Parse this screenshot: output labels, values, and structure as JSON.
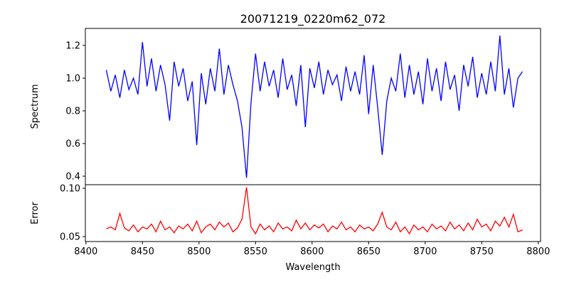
{
  "chart_data": [
    {
      "type": "line",
      "title": "20071219_0220m62_072",
      "xlabel": "",
      "ylabel": "Spectrum",
      "xlim": [
        8399.5,
        8802
      ],
      "ylim": [
        0.348,
        1.304
      ],
      "yticks": [
        0.4,
        0.6,
        0.8,
        1.0,
        1.2
      ],
      "ytick_labels": [
        "0.4",
        "0.6",
        "0.8",
        "1.0",
        "1.2"
      ],
      "color": "#0000ff",
      "series": [
        {
          "name": "Spectrum",
          "x": [
            8418,
            8422,
            8426,
            8430,
            8434,
            8438,
            8442,
            8446,
            8450,
            8454,
            8458,
            8462,
            8466,
            8470,
            8474,
            8478,
            8482,
            8486,
            8490,
            8494,
            8498,
            8502,
            8506,
            8510,
            8514,
            8518,
            8522,
            8526,
            8530,
            8534,
            8538,
            8542,
            8546,
            8550,
            8554,
            8558,
            8562,
            8566,
            8570,
            8574,
            8578,
            8582,
            8586,
            8590,
            8594,
            8598,
            8602,
            8606,
            8610,
            8614,
            8618,
            8622,
            8626,
            8630,
            8634,
            8638,
            8642,
            8646,
            8650,
            8654,
            8658,
            8662,
            8666,
            8670,
            8674,
            8678,
            8682,
            8686,
            8690,
            8694,
            8698,
            8702,
            8706,
            8710,
            8714,
            8718,
            8722,
            8726,
            8730,
            8734,
            8738,
            8742,
            8746,
            8750,
            8754,
            8758,
            8762,
            8766,
            8770,
            8774,
            8778,
            8782,
            8786
          ],
          "values": [
            1.05,
            0.92,
            1.02,
            0.88,
            1.05,
            0.93,
            1.0,
            0.9,
            1.22,
            0.95,
            1.12,
            0.92,
            1.08,
            0.96,
            0.74,
            1.1,
            0.95,
            1.06,
            0.86,
            0.98,
            0.59,
            1.03,
            0.84,
            1.06,
            0.92,
            1.18,
            0.9,
            1.08,
            0.96,
            0.86,
            0.7,
            0.39,
            0.85,
            1.15,
            0.92,
            1.1,
            0.95,
            1.05,
            0.88,
            1.12,
            0.93,
            1.02,
            0.83,
            1.08,
            0.7,
            1.06,
            0.94,
            1.1,
            0.9,
            1.05,
            0.96,
            1.02,
            0.86,
            1.07,
            0.92,
            1.04,
            0.9,
            1.14,
            0.78,
            1.08,
            0.82,
            0.53,
            0.86,
            1.0,
            0.92,
            1.15,
            0.88,
            1.08,
            0.9,
            1.04,
            0.84,
            1.12,
            0.92,
            1.06,
            0.86,
            1.1,
            0.93,
            1.02,
            0.8,
            1.08,
            0.95,
            1.13,
            0.88,
            1.03,
            0.9,
            1.1,
            0.92,
            1.26,
            0.9,
            1.06,
            0.82,
            1.0,
            1.04
          ]
        }
      ]
    },
    {
      "type": "line",
      "title": "",
      "xlabel": "Wavelength",
      "ylabel": "Error",
      "xlim": [
        8399.5,
        8802
      ],
      "ylim": [
        0.0449,
        0.1037
      ],
      "xticks": [
        8400,
        8450,
        8500,
        8550,
        8600,
        8650,
        8700,
        8750,
        8800
      ],
      "xtick_labels": [
        "8400",
        "8450",
        "8500",
        "8550",
        "8600",
        "8650",
        "8700",
        "8750",
        "8800"
      ],
      "yticks": [
        0.05,
        0.1
      ],
      "ytick_labels": [
        "0.05",
        "0.10"
      ],
      "color": "#ff0000",
      "series": [
        {
          "name": "Error",
          "x": [
            8418,
            8422,
            8426,
            8430,
            8434,
            8438,
            8442,
            8446,
            8450,
            8454,
            8458,
            8462,
            8466,
            8470,
            8474,
            8478,
            8482,
            8486,
            8490,
            8494,
            8498,
            8502,
            8506,
            8510,
            8514,
            8518,
            8522,
            8526,
            8530,
            8534,
            8538,
            8542,
            8546,
            8550,
            8554,
            8558,
            8562,
            8566,
            8570,
            8574,
            8578,
            8582,
            8586,
            8590,
            8594,
            8598,
            8602,
            8606,
            8610,
            8614,
            8618,
            8622,
            8626,
            8630,
            8634,
            8638,
            8642,
            8646,
            8650,
            8654,
            8658,
            8662,
            8666,
            8670,
            8674,
            8678,
            8682,
            8686,
            8690,
            8694,
            8698,
            8702,
            8706,
            8710,
            8714,
            8718,
            8722,
            8726,
            8730,
            8734,
            8738,
            8742,
            8746,
            8750,
            8754,
            8758,
            8762,
            8766,
            8770,
            8774,
            8778,
            8782,
            8786
          ],
          "values": [
            0.058,
            0.06,
            0.057,
            0.074,
            0.059,
            0.056,
            0.062,
            0.055,
            0.06,
            0.058,
            0.063,
            0.055,
            0.066,
            0.057,
            0.06,
            0.054,
            0.061,
            0.058,
            0.063,
            0.056,
            0.066,
            0.054,
            0.06,
            0.063,
            0.057,
            0.065,
            0.06,
            0.064,
            0.055,
            0.059,
            0.068,
            0.101,
            0.06,
            0.053,
            0.063,
            0.057,
            0.061,
            0.055,
            0.064,
            0.058,
            0.06,
            0.056,
            0.067,
            0.058,
            0.064,
            0.057,
            0.062,
            0.059,
            0.063,
            0.055,
            0.061,
            0.058,
            0.065,
            0.057,
            0.06,
            0.055,
            0.062,
            0.058,
            0.06,
            0.056,
            0.063,
            0.075,
            0.06,
            0.057,
            0.065,
            0.055,
            0.06,
            0.053,
            0.062,
            0.057,
            0.06,
            0.055,
            0.063,
            0.058,
            0.061,
            0.056,
            0.065,
            0.058,
            0.062,
            0.056,
            0.064,
            0.057,
            0.068,
            0.06,
            0.063,
            0.056,
            0.066,
            0.061,
            0.07,
            0.06,
            0.073,
            0.055,
            0.057
          ]
        }
      ]
    }
  ]
}
